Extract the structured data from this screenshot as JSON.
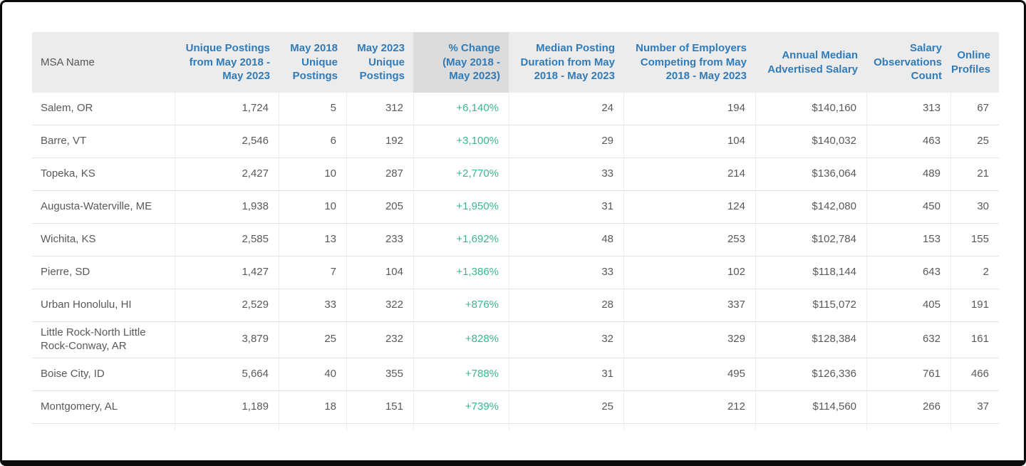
{
  "colors": {
    "header_bg": "#ececec",
    "highlighted_column_bg": "#dcdcdc",
    "header_text_blue": "#317bb8",
    "msa_name_header_text": "#555555",
    "body_text": "#595959",
    "positive_change_green": "#36b98c"
  },
  "table": {
    "columns": [
      {
        "label": "MSA Name",
        "align": "left",
        "highlighted": false
      },
      {
        "label": "Unique Postings from May 2018 - May 2023",
        "align": "right",
        "highlighted": false
      },
      {
        "label": "May 2018 Unique Postings",
        "align": "right",
        "highlighted": false
      },
      {
        "label": "May 2023 Unique Postings",
        "align": "right",
        "highlighted": false
      },
      {
        "label": "% Change (May 2018 - May 2023)",
        "align": "right",
        "highlighted": true
      },
      {
        "label": "Median Posting Duration from May 2018 - May 2023",
        "align": "right",
        "highlighted": false
      },
      {
        "label": "Number of Employers Competing from May 2018 - May 2023",
        "align": "right",
        "highlighted": false
      },
      {
        "label": "Annual Median Advertised Salary",
        "align": "right",
        "highlighted": false
      },
      {
        "label": "Salary Observations Count",
        "align": "right",
        "highlighted": false
      },
      {
        "label": "Online Profiles",
        "align": "right",
        "highlighted": false
      }
    ],
    "rows": [
      {
        "cells": [
          "Salem, OR",
          "1,724",
          "5",
          "312",
          "+6,140%",
          "24",
          "194",
          "$140,160",
          "313",
          "67"
        ]
      },
      {
        "cells": [
          "Barre, VT",
          "2,546",
          "6",
          "192",
          "+3,100%",
          "29",
          "104",
          "$140,032",
          "463",
          "25"
        ]
      },
      {
        "cells": [
          "Topeka, KS",
          "2,427",
          "10",
          "287",
          "+2,770%",
          "33",
          "214",
          "$136,064",
          "489",
          "21"
        ]
      },
      {
        "cells": [
          "Augusta-Waterville, ME",
          "1,938",
          "10",
          "205",
          "+1,950%",
          "31",
          "124",
          "$142,080",
          "450",
          "30"
        ]
      },
      {
        "cells": [
          "Wichita, KS",
          "2,585",
          "13",
          "233",
          "+1,692%",
          "48",
          "253",
          "$102,784",
          "153",
          "155"
        ]
      },
      {
        "cells": [
          "Pierre, SD",
          "1,427",
          "7",
          "104",
          "+1,386%",
          "33",
          "102",
          "$118,144",
          "643",
          "2"
        ]
      },
      {
        "cells": [
          "Urban Honolulu, HI",
          "2,529",
          "33",
          "322",
          "+876%",
          "28",
          "337",
          "$115,072",
          "405",
          "191"
        ]
      },
      {
        "cells": [
          "Little Rock-North Little Rock-Conway, AR",
          "3,879",
          "25",
          "232",
          "+828%",
          "32",
          "329",
          "$128,384",
          "632",
          "161"
        ]
      },
      {
        "cells": [
          "Boise City, ID",
          "5,664",
          "40",
          "355",
          "+788%",
          "31",
          "495",
          "$126,336",
          "761",
          "466"
        ]
      },
      {
        "cells": [
          "Montgomery, AL",
          "1,189",
          "18",
          "151",
          "+739%",
          "25",
          "212",
          "$114,560",
          "266",
          "37"
        ]
      }
    ]
  }
}
